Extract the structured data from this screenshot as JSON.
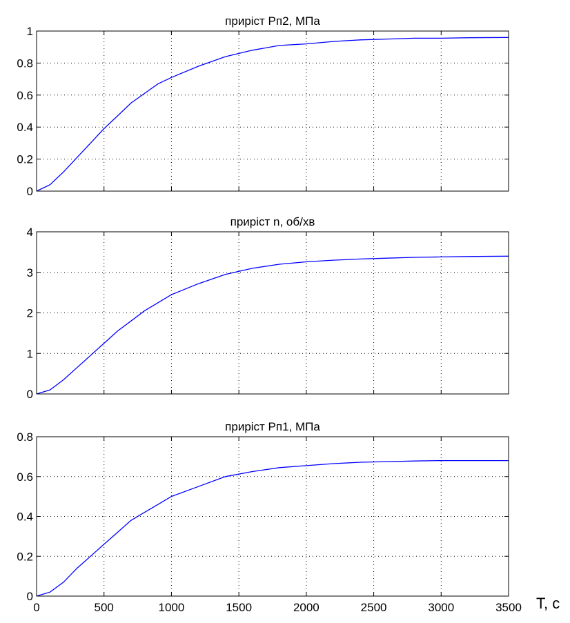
{
  "figure": {
    "x_unit_label": "T, c"
  },
  "chart_data": [
    {
      "type": "line",
      "title": "приріст Рп2, МПа",
      "xlabel": "",
      "ylabel": "",
      "xlim": [
        0,
        3500
      ],
      "ylim": [
        0,
        1
      ],
      "xticks": [
        0,
        500,
        1000,
        1500,
        2000,
        2500,
        3000,
        3500
      ],
      "yticks": [
        0,
        0.2,
        0.4,
        0.6,
        0.8,
        1
      ],
      "yticklabels": [
        "0",
        "0.2",
        "0.4",
        "0.6",
        "0.8",
        "1"
      ],
      "show_xticklabels": false,
      "grid": true,
      "color": "#0000ff",
      "x": [
        0,
        100,
        200,
        300,
        400,
        500,
        600,
        700,
        800,
        900,
        1000,
        1200,
        1400,
        1600,
        1800,
        2000,
        2200,
        2400,
        2600,
        2800,
        3000,
        3200,
        3500
      ],
      "y": [
        0,
        0.04,
        0.12,
        0.21,
        0.3,
        0.39,
        0.47,
        0.55,
        0.61,
        0.67,
        0.71,
        0.78,
        0.84,
        0.88,
        0.91,
        0.92,
        0.935,
        0.945,
        0.95,
        0.955,
        0.955,
        0.958,
        0.96
      ]
    },
    {
      "type": "line",
      "title": "приріст n, об/хв",
      "xlabel": "",
      "ylabel": "",
      "xlim": [
        0,
        3500
      ],
      "ylim": [
        0,
        4
      ],
      "xticks": [
        0,
        500,
        1000,
        1500,
        2000,
        2500,
        3000,
        3500
      ],
      "yticks": [
        0,
        1,
        2,
        3,
        4
      ],
      "yticklabels": [
        "0",
        "1",
        "2",
        "3",
        "4"
      ],
      "show_xticklabels": false,
      "grid": true,
      "color": "#0000ff",
      "x": [
        0,
        100,
        200,
        300,
        400,
        500,
        600,
        700,
        800,
        900,
        1000,
        1200,
        1400,
        1600,
        1800,
        2000,
        2200,
        2400,
        2600,
        2800,
        3000,
        3200,
        3500
      ],
      "y": [
        0,
        0.1,
        0.35,
        0.65,
        0.95,
        1.25,
        1.55,
        1.8,
        2.05,
        2.25,
        2.45,
        2.72,
        2.95,
        3.1,
        3.2,
        3.26,
        3.3,
        3.33,
        3.35,
        3.37,
        3.38,
        3.39,
        3.4
      ]
    },
    {
      "type": "line",
      "title": "приріст Рп1, МПа",
      "xlabel": "",
      "ylabel": "",
      "xlim": [
        0,
        3500
      ],
      "ylim": [
        0,
        0.8
      ],
      "xticks": [
        0,
        500,
        1000,
        1500,
        2000,
        2500,
        3000,
        3500
      ],
      "xticklabels": [
        "0",
        "500",
        "1000",
        "1500",
        "2000",
        "2500",
        "3000",
        "3500"
      ],
      "yticks": [
        0,
        0.2,
        0.4,
        0.6,
        0.8
      ],
      "yticklabels": [
        "0",
        "0.2",
        "0.4",
        "0.6",
        "0.8"
      ],
      "show_xticklabels": true,
      "grid": true,
      "color": "#0000ff",
      "x": [
        0,
        100,
        200,
        300,
        400,
        500,
        600,
        700,
        800,
        900,
        1000,
        1200,
        1400,
        1600,
        1800,
        2000,
        2200,
        2400,
        2600,
        2800,
        3000,
        3200,
        3500
      ],
      "y": [
        0,
        0.02,
        0.07,
        0.14,
        0.2,
        0.26,
        0.32,
        0.38,
        0.42,
        0.46,
        0.5,
        0.55,
        0.6,
        0.625,
        0.645,
        0.655,
        0.665,
        0.672,
        0.675,
        0.678,
        0.68,
        0.68,
        0.68
      ]
    }
  ]
}
